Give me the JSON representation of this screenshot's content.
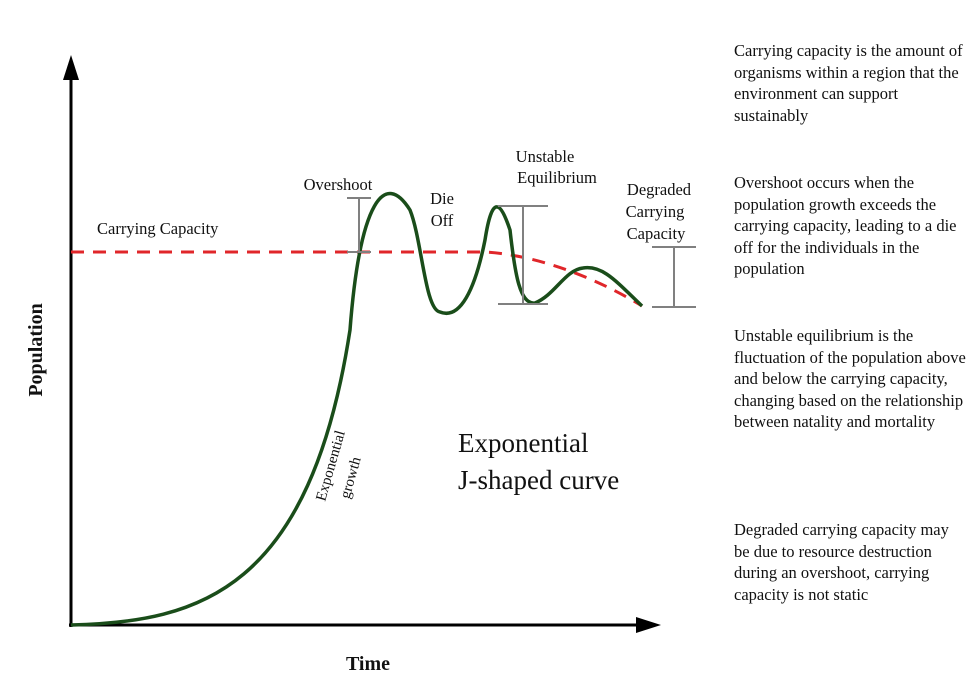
{
  "diagram": {
    "axis_x_label": "Time",
    "axis_y_label": "Population",
    "labels": {
      "carrying_capacity": "Carrying Capacity",
      "overshoot": "Overshoot",
      "die_off_1": "Die",
      "die_off_2": "Off",
      "unstable_1": "Unstable",
      "unstable_2": "Equilibrium",
      "degraded_1": "Degraded",
      "degraded_2": "Carrying",
      "degraded_3": "Capacity",
      "growth_1": "Exponential",
      "growth_2": "growth",
      "curve_1": "Exponential",
      "curve_2": "J-shaped curve"
    },
    "colors": {
      "population_curve": "#1a4d1a",
      "carrying_capacity_line": "#e0262a",
      "axis": "#000000",
      "bracket": "#808080"
    }
  },
  "notes": [
    "Carrying capacity is the amount of organisms within a region that the environment can support sustainably",
    "Overshoot occurs when the population growth exceeds the carrying capacity, leading to a die off for the individuals in the population",
    "Unstable equilibrium is the fluctuation of the population above and below the carrying capacity, changing based on the relationship between natality and mortality",
    "Degraded carrying capacity may be due to resource destruction during an overshoot, carrying capacity is not static"
  ]
}
